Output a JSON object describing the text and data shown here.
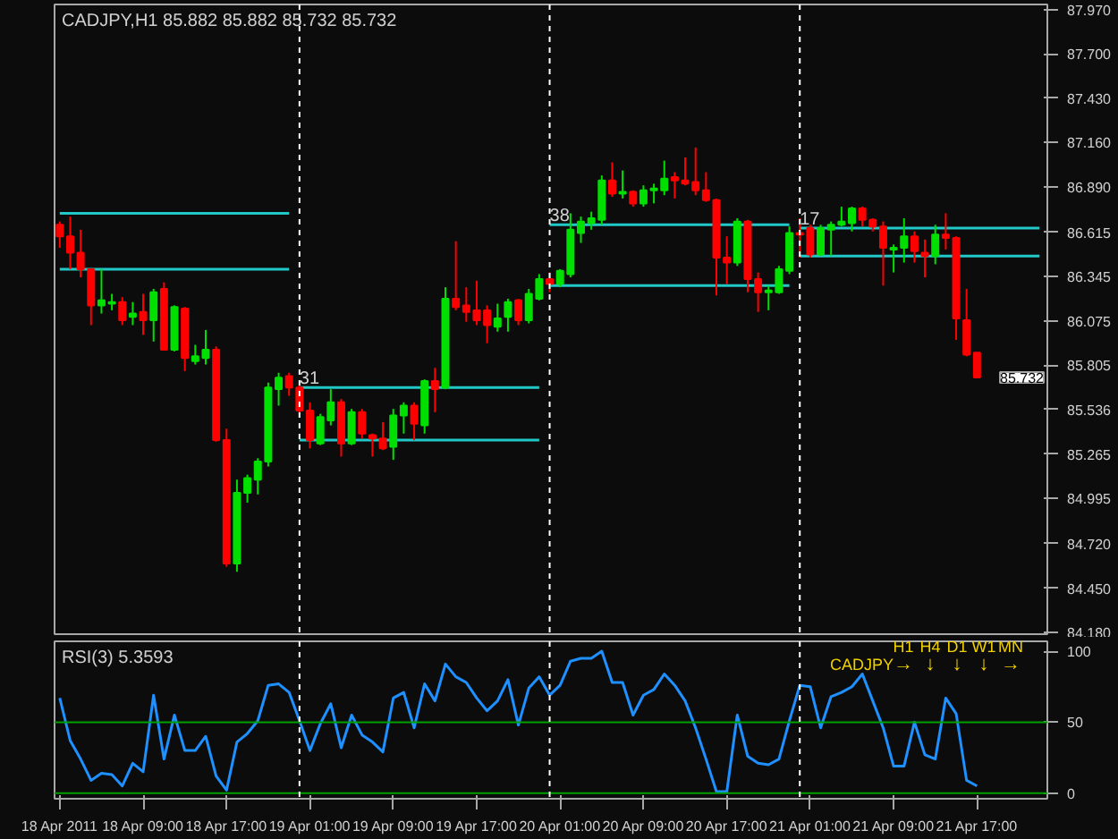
{
  "chart_data": [
    {
      "type": "candlestick",
      "title": "CADJPY,H1 85.882 85.882 85.732 85.732",
      "x": [
        "2011-04-18T01:00",
        "2011-04-18T02:00",
        "2011-04-18T03:00",
        "2011-04-18T04:00",
        "2011-04-18T05:00",
        "2011-04-18T06:00",
        "2011-04-18T07:00",
        "2011-04-18T08:00",
        "2011-04-18T09:00",
        "2011-04-18T10:00",
        "2011-04-18T11:00",
        "2011-04-18T12:00",
        "2011-04-18T13:00",
        "2011-04-18T14:00",
        "2011-04-18T15:00",
        "2011-04-18T16:00",
        "2011-04-18T17:00",
        "2011-04-18T18:00",
        "2011-04-18T19:00",
        "2011-04-18T20:00",
        "2011-04-18T21:00",
        "2011-04-18T22:00",
        "2011-04-18T23:00",
        "2011-04-19T00:00",
        "2011-04-19T01:00",
        "2011-04-19T02:00",
        "2011-04-19T03:00",
        "2011-04-19T04:00",
        "2011-04-19T05:00",
        "2011-04-19T06:00",
        "2011-04-19T07:00",
        "2011-04-19T08:00",
        "2011-04-19T09:00",
        "2011-04-19T10:00",
        "2011-04-19T11:00",
        "2011-04-19T12:00",
        "2011-04-19T13:00",
        "2011-04-19T14:00",
        "2011-04-19T15:00",
        "2011-04-19T16:00",
        "2011-04-19T17:00",
        "2011-04-19T18:00",
        "2011-04-19T19:00",
        "2011-04-19T20:00",
        "2011-04-19T21:00",
        "2011-04-19T22:00",
        "2011-04-19T23:00",
        "2011-04-20T00:00",
        "2011-04-20T01:00",
        "2011-04-20T02:00",
        "2011-04-20T03:00",
        "2011-04-20T04:00",
        "2011-04-20T05:00",
        "2011-04-20T06:00",
        "2011-04-20T07:00",
        "2011-04-20T08:00",
        "2011-04-20T09:00",
        "2011-04-20T10:00",
        "2011-04-20T11:00",
        "2011-04-20T12:00",
        "2011-04-20T13:00",
        "2011-04-20T14:00",
        "2011-04-20T15:00",
        "2011-04-20T16:00",
        "2011-04-20T17:00",
        "2011-04-20T18:00",
        "2011-04-20T19:00",
        "2011-04-20T20:00",
        "2011-04-20T21:00",
        "2011-04-20T22:00",
        "2011-04-20T23:00",
        "2011-04-21T00:00",
        "2011-04-21T01:00",
        "2011-04-21T02:00",
        "2011-04-21T03:00",
        "2011-04-21T04:00",
        "2011-04-21T05:00",
        "2011-04-21T06:00",
        "2011-04-21T07:00",
        "2011-04-21T08:00",
        "2011-04-21T09:00",
        "2011-04-21T10:00",
        "2011-04-21T11:00",
        "2011-04-21T12:00",
        "2011-04-21T13:00",
        "2011-04-21T14:00",
        "2011-04-21T15:00",
        "2011-04-21T16:00",
        "2011-04-21T17:00"
      ],
      "ohlc": [
        [
          86.66,
          86.68,
          86.52,
          86.59
        ],
        [
          86.59,
          86.71,
          86.39,
          86.49
        ],
        [
          86.49,
          86.63,
          86.34,
          86.39
        ],
        [
          86.39,
          86.39,
          86.05,
          86.17
        ],
        [
          86.17,
          86.39,
          86.12,
          86.2
        ],
        [
          86.18,
          86.24,
          86.14,
          86.19
        ],
        [
          86.19,
          86.22,
          86.05,
          86.08
        ],
        [
          86.1,
          86.19,
          86.05,
          86.12
        ],
        [
          86.13,
          86.24,
          85.99,
          86.08
        ],
        [
          86.08,
          86.27,
          85.95,
          86.25
        ],
        [
          86.27,
          86.31,
          85.9,
          85.9
        ],
        [
          85.9,
          86.17,
          85.89,
          86.16
        ],
        [
          86.15,
          86.16,
          85.77,
          85.85
        ],
        [
          85.83,
          85.93,
          85.81,
          85.86
        ],
        [
          85.85,
          86.02,
          85.81,
          85.9
        ],
        [
          85.9,
          85.92,
          85.34,
          85.35
        ],
        [
          85.35,
          85.42,
          84.58,
          84.6
        ],
        [
          84.6,
          85.11,
          84.55,
          85.03
        ],
        [
          85.03,
          85.14,
          84.97,
          85.12
        ],
        [
          85.11,
          85.24,
          85.02,
          85.22
        ],
        [
          85.22,
          85.7,
          85.19,
          85.67
        ],
        [
          85.66,
          85.76,
          85.56,
          85.73
        ],
        [
          85.74,
          85.76,
          85.62,
          85.67
        ],
        [
          85.67,
          85.69,
          85.49,
          85.53
        ],
        [
          85.53,
          85.58,
          85.3,
          85.35
        ],
        [
          85.33,
          85.51,
          85.32,
          85.49
        ],
        [
          85.47,
          85.66,
          85.44,
          85.58
        ],
        [
          85.58,
          85.6,
          85.25,
          85.33
        ],
        [
          85.33,
          85.54,
          85.32,
          85.52
        ],
        [
          85.52,
          85.54,
          85.36,
          85.39
        ],
        [
          85.38,
          85.39,
          85.25,
          85.36
        ],
        [
          85.36,
          85.46,
          85.29,
          85.3
        ],
        [
          85.31,
          85.54,
          85.23,
          85.5
        ],
        [
          85.5,
          85.58,
          85.39,
          85.56
        ],
        [
          85.56,
          85.58,
          85.35,
          85.45
        ],
        [
          85.44,
          85.72,
          85.39,
          85.71
        ],
        [
          85.71,
          85.79,
          85.52,
          85.66
        ],
        [
          85.67,
          86.28,
          85.66,
          86.21
        ],
        [
          86.21,
          86.56,
          86.14,
          86.16
        ],
        [
          86.17,
          86.28,
          86.07,
          86.13
        ],
        [
          86.14,
          86.32,
          86.05,
          86.08
        ],
        [
          86.14,
          86.17,
          85.94,
          86.05
        ],
        [
          86.04,
          86.18,
          86.01,
          86.09
        ],
        [
          86.1,
          86.21,
          86.01,
          86.19
        ],
        [
          86.2,
          86.21,
          86.05,
          86.08
        ],
        [
          86.08,
          86.27,
          86.06,
          86.24
        ],
        [
          86.21,
          86.36,
          86.2,
          86.33
        ],
        [
          86.33,
          86.37,
          86.25,
          86.3
        ],
        [
          86.3,
          86.39,
          86.28,
          86.38
        ],
        [
          86.36,
          86.73,
          86.34,
          86.63
        ],
        [
          86.61,
          86.71,
          86.55,
          86.68
        ],
        [
          86.67,
          86.74,
          86.63,
          86.7
        ],
        [
          86.69,
          86.96,
          86.66,
          86.93
        ],
        [
          86.93,
          87.04,
          86.83,
          86.85
        ],
        [
          86.85,
          86.99,
          86.82,
          86.86
        ],
        [
          86.86,
          86.87,
          86.77,
          86.79
        ],
        [
          86.79,
          86.9,
          86.77,
          86.87
        ],
        [
          86.87,
          86.91,
          86.79,
          86.88
        ],
        [
          86.87,
          87.05,
          86.84,
          86.94
        ],
        [
          86.95,
          86.98,
          86.82,
          86.93
        ],
        [
          86.93,
          87.07,
          86.9,
          86.91
        ],
        [
          86.92,
          87.13,
          86.84,
          86.87
        ],
        [
          86.87,
          86.98,
          86.8,
          86.81
        ],
        [
          86.81,
          86.82,
          86.23,
          86.46
        ],
        [
          86.46,
          86.59,
          86.3,
          86.43
        ],
        [
          86.43,
          86.7,
          86.41,
          86.68
        ],
        [
          86.68,
          86.69,
          86.25,
          86.33
        ],
        [
          86.33,
          86.37,
          86.13,
          86.25
        ],
        [
          86.25,
          86.29,
          86.14,
          86.26
        ],
        [
          86.25,
          86.41,
          86.24,
          86.39
        ],
        [
          86.38,
          86.65,
          86.36,
          86.61
        ],
        [
          86.61,
          86.7,
          86.46,
          86.6
        ],
        [
          86.64,
          86.66,
          86.46,
          86.48
        ],
        [
          86.48,
          86.66,
          86.47,
          86.64
        ],
        [
          86.63,
          86.68,
          86.47,
          86.66
        ],
        [
          86.66,
          86.77,
          86.65,
          86.68
        ],
        [
          86.67,
          86.77,
          86.62,
          86.76
        ],
        [
          86.76,
          86.77,
          86.65,
          86.69
        ],
        [
          86.69,
          86.7,
          86.62,
          86.65
        ],
        [
          86.65,
          86.68,
          86.29,
          86.52
        ],
        [
          86.51,
          86.54,
          86.37,
          86.52
        ],
        [
          86.52,
          86.7,
          86.43,
          86.59
        ],
        [
          86.59,
          86.62,
          86.43,
          86.5
        ],
        [
          86.49,
          86.57,
          86.34,
          86.47
        ],
        [
          86.47,
          86.66,
          86.42,
          86.6
        ],
        [
          86.6,
          86.73,
          86.51,
          86.58
        ],
        [
          86.58,
          86.59,
          85.96,
          86.09
        ],
        [
          86.08,
          86.27,
          85.86,
          85.87
        ],
        [
          85.882,
          85.882,
          85.732,
          85.732
        ]
      ],
      "colors": [
        "#ff0000",
        "#ff0000",
        "#ff0000",
        "#ff0000",
        "#00e000",
        "#00e000",
        "#ff0000",
        "#00e000",
        "#ff0000",
        "#00e000",
        "#ff0000",
        "#00e000",
        "#ff0000",
        "#00e000",
        "#00e000",
        "#ff0000",
        "#ff0000",
        "#00e000",
        "#00e000",
        "#00e000",
        "#00e000",
        "#00e000",
        "#ff0000",
        "#ff0000",
        "#ff0000",
        "#00e000",
        "#00e000",
        "#ff0000",
        "#00e000",
        "#ff0000",
        "#ff0000",
        "#ff0000",
        "#00e000",
        "#00e000",
        "#ff0000",
        "#00e000",
        "#ff0000",
        "#00e000",
        "#ff0000",
        "#ff0000",
        "#ff0000",
        "#ff0000",
        "#00e000",
        "#00e000",
        "#ff0000",
        "#00e000",
        "#00e000",
        "#ff0000",
        "#00e000",
        "#00e000",
        "#00e000",
        "#00e000",
        "#00e000",
        "#ff0000",
        "#00e000",
        "#ff0000",
        "#00e000",
        "#00e000",
        "#00e000",
        "#ff0000",
        "#ff0000",
        "#ff0000",
        "#ff0000",
        "#ff0000",
        "#ff0000",
        "#00e000",
        "#ff0000",
        "#ff0000",
        "#00e000",
        "#00e000",
        "#00e000",
        "#ff0000",
        "#ff0000",
        "#00e000",
        "#00e000",
        "#00e000",
        "#00e000",
        "#ff0000",
        "#ff0000",
        "#ff0000",
        "#00e000",
        "#00e000",
        "#ff0000",
        "#ff0000",
        "#00e000",
        "#ff0000",
        "#ff0000",
        "#ff0000",
        "#ff0000"
      ],
      "series": [
        {
          "type": "line",
          "color": "#20c8c8",
          "x": [
            "2011-04-18T01:00",
            "2011-04-18T23:00"
          ],
          "values": [
            86.73,
            86.73
          ]
        },
        {
          "type": "line",
          "color": "#20c8c8",
          "x": [
            "2011-04-18T01:00",
            "2011-04-18T23:00"
          ],
          "values": [
            86.39,
            86.39
          ]
        },
        {
          "type": "line",
          "color": "#20c8c8",
          "x": [
            "2011-04-19T00:00",
            "2011-04-19T23:00"
          ],
          "values": [
            85.67,
            85.67
          ]
        },
        {
          "type": "line",
          "color": "#20c8c8",
          "x": [
            "2011-04-19T00:00",
            "2011-04-19T23:00"
          ],
          "values": [
            85.35,
            85.35
          ]
        },
        {
          "type": "line",
          "color": "#20c8c8",
          "x": [
            "2011-04-20T00:00",
            "2011-04-20T23:00"
          ],
          "values": [
            86.66,
            86.66
          ]
        },
        {
          "type": "line",
          "color": "#20c8c8",
          "x": [
            "2011-04-20T00:00",
            "2011-04-20T23:00"
          ],
          "values": [
            86.29,
            86.29
          ]
        },
        {
          "type": "line",
          "color": "#20c8c8",
          "x": [
            "2011-04-21T00:00",
            "2011-04-21T23:00"
          ],
          "values": [
            86.64,
            86.64
          ]
        },
        {
          "type": "line",
          "color": "#20c8c8",
          "x": [
            "2011-04-21T00:00",
            "2011-04-21T23:00"
          ],
          "values": [
            86.47,
            86.47
          ]
        }
      ],
      "annotations": [
        {
          "text": "31",
          "x": "2011-04-19T00:00",
          "y": 85.67
        },
        {
          "text": "38",
          "x": "2011-04-20T00:00",
          "y": 86.66
        },
        {
          "text": "17",
          "x": "2011-04-21T00:00",
          "y": 86.64
        },
        "85.732"
      ],
      "ref_lines": [
        {
          "axis": "x",
          "value": "2011-04-19T00:00",
          "color": "#ffffff",
          "line_style": "dashed"
        },
        {
          "axis": "x",
          "value": "2011-04-20T00:00",
          "color": "#ffffff",
          "line_style": "dashed"
        },
        {
          "axis": "x",
          "value": "2011-04-21T00:00",
          "color": "#ffffff",
          "line_style": "dashed"
        }
      ],
      "xlim": [
        "2011-04-18T00:30",
        "2011-04-21T23:45"
      ],
      "ylim": [
        84.17,
        88.0
      ],
      "yticks": [
        {
          "value": 87.97,
          "label": "87.970"
        },
        {
          "value": 87.7,
          "label": "87.700"
        },
        {
          "value": 87.43,
          "label": "87.430"
        },
        {
          "value": 87.16,
          "label": "87.160"
        },
        {
          "value": 86.89,
          "label": "86.890"
        },
        {
          "value": 86.615,
          "label": "86.615"
        },
        {
          "value": 86.345,
          "label": "86.345"
        },
        {
          "value": 86.075,
          "label": "86.075"
        },
        {
          "value": 85.805,
          "label": "85.805"
        },
        {
          "value": 85.536,
          "label": "85.536"
        },
        {
          "value": 85.265,
          "label": "85.265"
        },
        {
          "value": 84.995,
          "label": "84.995"
        },
        {
          "value": 84.72,
          "label": "84.720"
        },
        {
          "value": 84.45,
          "label": "84.450"
        },
        {
          "value": 84.18,
          "label": "84.180"
        }
      ],
      "tick_labels": "y",
      "grid": false
    },
    {
      "type": "line",
      "title": "RSI(3) 5.3593",
      "x": [
        "2011-04-18T01:00",
        "2011-04-18T02:00",
        "2011-04-18T03:00",
        "2011-04-18T04:00",
        "2011-04-18T05:00",
        "2011-04-18T06:00",
        "2011-04-18T07:00",
        "2011-04-18T08:00",
        "2011-04-18T09:00",
        "2011-04-18T10:00",
        "2011-04-18T11:00",
        "2011-04-18T12:00",
        "2011-04-18T13:00",
        "2011-04-18T14:00",
        "2011-04-18T15:00",
        "2011-04-18T16:00",
        "2011-04-18T17:00",
        "2011-04-18T18:00",
        "2011-04-18T19:00",
        "2011-04-18T20:00",
        "2011-04-18T21:00",
        "2011-04-18T22:00",
        "2011-04-18T23:00",
        "2011-04-19T00:00",
        "2011-04-19T01:00",
        "2011-04-19T02:00",
        "2011-04-19T03:00",
        "2011-04-19T04:00",
        "2011-04-19T05:00",
        "2011-04-19T06:00",
        "2011-04-19T07:00",
        "2011-04-19T08:00",
        "2011-04-19T09:00",
        "2011-04-19T10:00",
        "2011-04-19T11:00",
        "2011-04-19T12:00",
        "2011-04-19T13:00",
        "2011-04-19T14:00",
        "2011-04-19T15:00",
        "2011-04-19T16:00",
        "2011-04-19T17:00",
        "2011-04-19T18:00",
        "2011-04-19T19:00",
        "2011-04-19T20:00",
        "2011-04-19T21:00",
        "2011-04-19T22:00",
        "2011-04-19T23:00",
        "2011-04-20T00:00",
        "2011-04-20T01:00",
        "2011-04-20T02:00",
        "2011-04-20T03:00",
        "2011-04-20T04:00",
        "2011-04-20T05:00",
        "2011-04-20T06:00",
        "2011-04-20T07:00",
        "2011-04-20T08:00",
        "2011-04-20T09:00",
        "2011-04-20T10:00",
        "2011-04-20T11:00",
        "2011-04-20T12:00",
        "2011-04-20T13:00",
        "2011-04-20T14:00",
        "2011-04-20T15:00",
        "2011-04-20T16:00",
        "2011-04-20T17:00",
        "2011-04-20T18:00",
        "2011-04-20T19:00",
        "2011-04-20T20:00",
        "2011-04-20T21:00",
        "2011-04-20T22:00",
        "2011-04-20T23:00",
        "2011-04-21T00:00",
        "2011-04-21T01:00",
        "2011-04-21T02:00",
        "2011-04-21T03:00",
        "2011-04-21T04:00",
        "2011-04-21T05:00",
        "2011-04-21T06:00",
        "2011-04-21T07:00",
        "2011-04-21T08:00",
        "2011-04-21T09:00",
        "2011-04-21T10:00",
        "2011-04-21T11:00",
        "2011-04-21T12:00",
        "2011-04-21T13:00",
        "2011-04-21T14:00",
        "2011-04-21T15:00",
        "2011-04-21T16:00",
        "2011-04-21T17:00"
      ],
      "series": [
        {
          "color": "#1e90ff",
          "values": [
            67,
            37,
            24,
            9,
            14,
            13,
            5,
            21,
            15,
            69,
            24,
            55,
            30,
            30,
            40,
            12,
            2,
            36,
            42,
            51,
            76,
            77,
            71,
            51,
            30,
            49,
            63,
            32,
            55,
            41,
            36,
            29,
            67,
            71,
            46,
            77,
            65,
            91,
            82,
            78,
            67,
            58,
            65,
            80,
            48,
            74,
            82,
            69,
            76,
            93,
            95,
            95,
            100,
            78,
            78,
            55,
            69,
            73,
            84,
            76,
            65,
            46,
            24,
            1,
            1,
            55,
            26,
            21,
            20,
            24,
            51,
            76,
            75,
            46,
            68,
            71,
            75,
            84,
            65,
            46,
            19,
            19,
            50,
            27,
            24,
            67,
            56,
            9,
            5
          ]
        }
      ],
      "annotations": [
        "CADJPY",
        "H1",
        "H4",
        "D1",
        "W1",
        "MN",
        "→",
        "↓",
        "↓",
        "↓",
        "→"
      ],
      "ref_lines": [
        {
          "axis": "y",
          "value": 50,
          "color": "#00a000",
          "line_style": "solid"
        },
        {
          "axis": "y",
          "value": 0,
          "color": "#00a000",
          "line_style": "solid"
        },
        {
          "axis": "x",
          "value": "2011-04-19T00:00",
          "color": "#ffffff",
          "line_style": "dashed"
        },
        {
          "axis": "x",
          "value": "2011-04-20T00:00",
          "color": "#ffffff",
          "line_style": "dashed"
        },
        {
          "axis": "x",
          "value": "2011-04-21T00:00",
          "color": "#ffffff",
          "line_style": "dashed"
        }
      ],
      "xlim": [
        "2011-04-18T00:30",
        "2011-04-21T23:45"
      ],
      "ylim": [
        -4,
        107
      ],
      "xticks": [
        {
          "value": "2011-04-18T01:00",
          "label": "18 Apr 2011"
        },
        {
          "value": "2011-04-18T09:00",
          "label": "18 Apr 09:00"
        },
        {
          "value": "2011-04-18T17:00",
          "label": "18 Apr 17:00"
        },
        {
          "value": "2011-04-19T01:00",
          "label": "19 Apr 01:00"
        },
        {
          "value": "2011-04-19T09:00",
          "label": "19 Apr 09:00"
        },
        {
          "value": "2011-04-19T17:00",
          "label": "19 Apr 17:00"
        },
        {
          "value": "2011-04-20T01:00",
          "label": "20 Apr 01:00"
        },
        {
          "value": "2011-04-20T09:00",
          "label": "20 Apr 09:00"
        },
        {
          "value": "2011-04-20T17:00",
          "label": "20 Apr 17:00"
        },
        {
          "value": "2011-04-21T01:00",
          "label": "21 Apr 01:00"
        },
        {
          "value": "2011-04-21T09:00",
          "label": "21 Apr 09:00"
        },
        {
          "value": "2011-04-21T17:00",
          "label": "21 Apr 17:00"
        }
      ],
      "yticks": [
        0,
        50,
        100
      ],
      "marker": "none",
      "line_style": "solid",
      "grid": false
    }
  ]
}
